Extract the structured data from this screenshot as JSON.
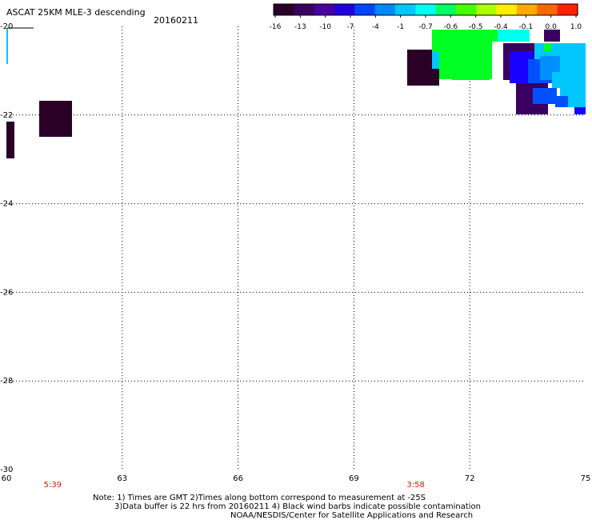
{
  "header": {
    "title": "ASCAT 25KM MLE-3 descending",
    "date": "20160211"
  },
  "colorbar": {
    "labels": [
      "-16",
      "-13",
      "-10",
      "-7",
      "-4",
      "-1",
      "-0.7",
      "-0.6",
      "-0.5",
      "-0.4",
      "-0.1",
      "0.0",
      "1.0"
    ],
    "colors": [
      "#2a0027",
      "#3a0060",
      "#4a00a0",
      "#2200e0",
      "#0044ff",
      "#0088ff",
      "#00c8ff",
      "#00ffee",
      "#00ff66",
      "#44ff00",
      "#aaff00",
      "#ffee00",
      "#ffaa00",
      "#ff6600",
      "#ff2200"
    ]
  },
  "map": {
    "x_ticks": [
      "60",
      "63",
      "66",
      "69",
      "72",
      "75"
    ],
    "y_ticks": [
      "-20",
      "-22",
      "-24",
      "-26",
      "-28",
      "-30"
    ],
    "x_range": [
      60,
      75
    ],
    "y_range": [
      -30,
      -20
    ],
    "grid": "dotted",
    "time_labels": [
      {
        "text": "5:39",
        "lon": 61.2
      },
      {
        "text": "3:58",
        "lon": 70.6
      }
    ]
  },
  "notes": {
    "line1": "Note: 1) Times are GMT 2)Times along bottom correspond to measurement at -25S",
    "line2": "3)Data buffer is 22 hrs from 20160211 4) Black wind barbs indicate possible contamination",
    "line3": "NOAA/NESDIS/Center for Satellite Applications and Research"
  }
}
